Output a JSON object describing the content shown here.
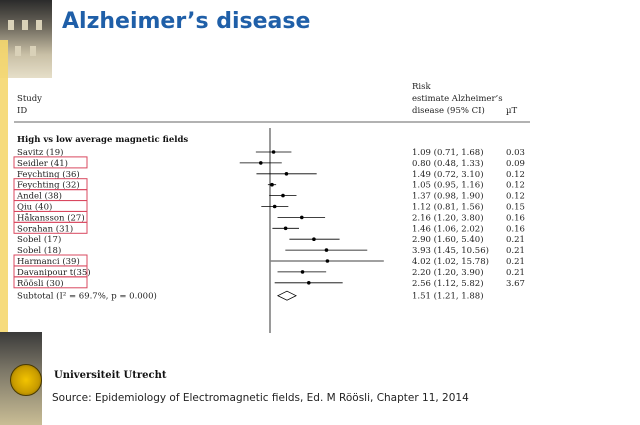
{
  "slide": {
    "title": "Alzheimer’s disease",
    "logo_text": "Universiteit Utrecht",
    "source": "Source: Epidemiology of Electromagnetic fields, Ed. M Röösli, Chapter 11, 2014"
  },
  "chart_data": {
    "type": "forest",
    "headers": {
      "study_line1": "Study",
      "study_line2": "ID",
      "risk_line1": "Risk",
      "risk_line2": "estimate Alzheimer’s",
      "risk_line3": "disease (95% CI)",
      "exposure": "µT"
    },
    "section": "High vs low average magnetic fields",
    "x_reference": 1,
    "studies": [
      {
        "label": "Savitz (19)",
        "est": 1.09,
        "lo": 0.71,
        "hi": 1.68,
        "ci_text": "1.09 (0.71, 1.68)",
        "exposure": "0.03",
        "highlight": false
      },
      {
        "label": "Seidler (41)",
        "est": 0.8,
        "lo": 0.48,
        "hi": 1.33,
        "ci_text": "0.80 (0.48, 1.33)",
        "exposure": "0.09",
        "highlight": true
      },
      {
        "label": "Feychting (36)",
        "est": 1.49,
        "lo": 0.72,
        "hi": 3.1,
        "ci_text": "1.49 (0.72, 3.10)",
        "exposure": "0.12",
        "highlight": false
      },
      {
        "label": "Feychting (32)",
        "est": 1.05,
        "lo": 0.95,
        "hi": 1.16,
        "ci_text": "1.05 (0.95, 1.16)",
        "exposure": "0.12",
        "highlight": true
      },
      {
        "label": "Andel (38)",
        "est": 1.37,
        "lo": 0.98,
        "hi": 1.9,
        "ci_text": "1.37 (0.98, 1.90)",
        "exposure": "0.12",
        "highlight": true
      },
      {
        "label": "Qiu (40)",
        "est": 1.12,
        "lo": 0.81,
        "hi": 1.56,
        "ci_text": "1.12 (0.81, 1.56)",
        "exposure": "0.15",
        "highlight": true
      },
      {
        "label": "Håkansson (27)",
        "est": 2.16,
        "lo": 1.2,
        "hi": 3.8,
        "ci_text": "2.16 (1.20, 3.80)",
        "exposure": "0.16",
        "highlight": true
      },
      {
        "label": "Sorahan (31)",
        "est": 1.46,
        "lo": 1.06,
        "hi": 2.02,
        "ci_text": "1.46 (1.06, 2.02)",
        "exposure": "0.16",
        "highlight": true
      },
      {
        "label": "Sobel (17)",
        "est": 2.9,
        "lo": 1.6,
        "hi": 5.4,
        "ci_text": "2.90 (1.60, 5.40)",
        "exposure": "0.21",
        "highlight": false
      },
      {
        "label": "Sobel (18)",
        "est": 3.93,
        "lo": 1.45,
        "hi": 10.56,
        "ci_text": "3.93 (1.45, 10.56)",
        "exposure": "0.21",
        "highlight": false
      },
      {
        "label": "Harmanci (39)",
        "est": 4.02,
        "lo": 1.02,
        "hi": 15.78,
        "ci_text": "4.02 (1.02, 15.78)",
        "exposure": "0.21",
        "highlight": true
      },
      {
        "label": "Davanipour t(35)",
        "est": 2.2,
        "lo": 1.2,
        "hi": 3.9,
        "ci_text": "2.20 (1.20, 3.90)",
        "exposure": "0.21",
        "highlight": true
      },
      {
        "label": "Röösli (30)",
        "est": 2.56,
        "lo": 1.12,
        "hi": 5.82,
        "ci_text": "2.56 (1.12, 5.82)",
        "exposure": "3.67",
        "highlight": true
      }
    ],
    "subtotal": {
      "label": "Subtotal (I² = 69.7%, p = 0.000)",
      "est": 1.51,
      "lo": 1.21,
      "hi": 1.88,
      "ci_text": "1.51 (1.21, 1.88)"
    },
    "colors": {
      "highlight_border": "#d9485f",
      "marker": "#000000",
      "title": "#1f5fa8"
    }
  }
}
